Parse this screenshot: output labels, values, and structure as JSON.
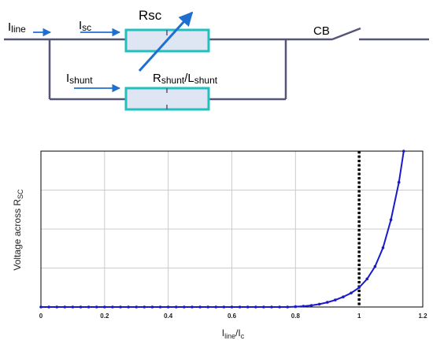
{
  "circuit": {
    "line_current": {
      "symbol": "I",
      "sub": "line"
    },
    "sc_current": {
      "symbol": "I",
      "sub": "sc"
    },
    "shunt_current": {
      "symbol": "I",
      "sub": "shunt"
    },
    "rsc_label": "Rsc",
    "shunt_label": {
      "r": "R",
      "r_sub": "shunt",
      "sep": "/L",
      "l_sub": "shunt"
    },
    "breaker_label": "CB",
    "colors": {
      "wire": "#555577",
      "arrow": "#1f6fd0",
      "resistor_fill": "#dde6f2",
      "resistor_border": "#20c0c0"
    }
  },
  "chart_data": {
    "type": "line",
    "title": "",
    "xlabel": {
      "main": "I",
      "sub1": "line",
      "mid": "/I",
      "sub2": "c"
    },
    "ylabel": {
      "main": "Voltage across R",
      "sub": "SC"
    },
    "xlim": [
      0,
      1.2
    ],
    "ylim": [
      0,
      1
    ],
    "x_ticks": [
      "0",
      "0.2",
      "0.4",
      "0.6",
      "0.8",
      "1",
      "1.2"
    ],
    "grid": true,
    "vertical_marker": {
      "x": 1.0,
      "style": "dotted",
      "color": "#000000"
    },
    "series": [
      {
        "color": "#1a1acc",
        "x": [
          0,
          0.025,
          0.05,
          0.075,
          0.1,
          0.125,
          0.15,
          0.175,
          0.2,
          0.225,
          0.25,
          0.275,
          0.3,
          0.325,
          0.35,
          0.375,
          0.4,
          0.425,
          0.45,
          0.475,
          0.5,
          0.525,
          0.55,
          0.575,
          0.6,
          0.625,
          0.65,
          0.675,
          0.7,
          0.725,
          0.75,
          0.775,
          0.8,
          0.825,
          0.85,
          0.875,
          0.9,
          0.925,
          0.95,
          0.975,
          1.0,
          1.025,
          1.05,
          1.075,
          1.1,
          1.125,
          1.14
        ],
        "y": [
          0,
          0,
          0,
          0,
          0,
          0,
          0,
          0,
          0,
          0,
          0,
          0,
          0,
          0,
          0,
          0,
          0,
          0,
          0,
          0,
          0,
          0,
          0,
          0,
          0,
          0,
          0,
          0,
          0,
          0,
          0,
          0,
          0.002,
          0.005,
          0.01,
          0.018,
          0.03,
          0.045,
          0.065,
          0.09,
          0.125,
          0.18,
          0.26,
          0.38,
          0.56,
          0.8,
          1.0
        ]
      }
    ]
  }
}
